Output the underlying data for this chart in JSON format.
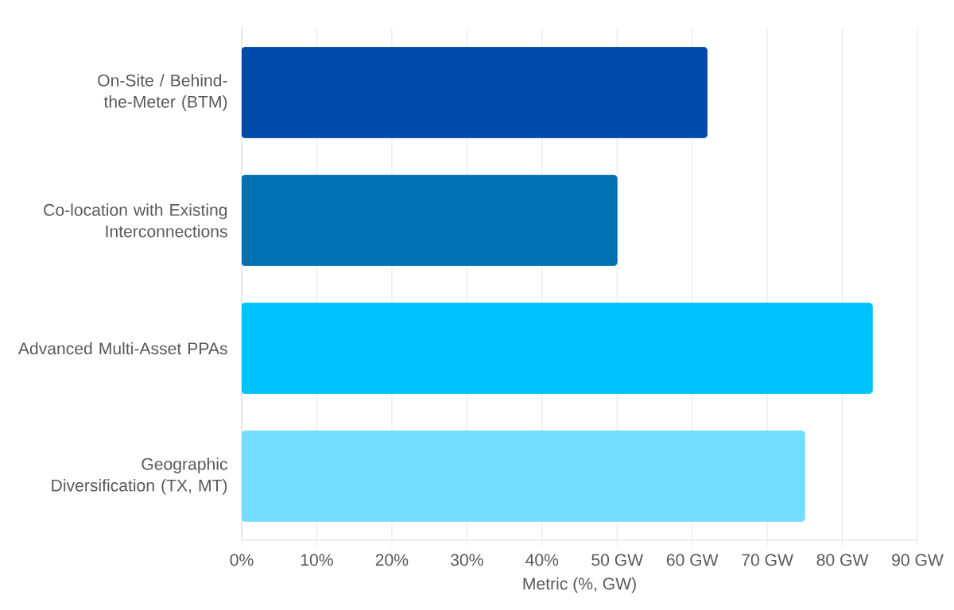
{
  "chart_data": {
    "type": "bar",
    "orientation": "horizontal",
    "xlabel": "Metric (%, GW)",
    "categories": [
      "On-Site / Behind-the-Meter (BTM)",
      "Co-location with Existing Interconnections",
      "Advanced Multi-Asset PPAs",
      "Geographic Diversification (TX, MT)"
    ],
    "values": [
      62,
      50,
      84,
      75
    ],
    "colors": [
      "#0049ac",
      "#0071b1",
      "#00c2ff",
      "#72ddff"
    ],
    "xlim": [
      0,
      90
    ],
    "xticks": [
      {
        "value": 0,
        "label": "0%"
      },
      {
        "value": 10,
        "label": "10%"
      },
      {
        "value": 20,
        "label": "20%"
      },
      {
        "value": 30,
        "label": "30%"
      },
      {
        "value": 40,
        "label": "40%"
      },
      {
        "value": 50,
        "label": "50 GW"
      },
      {
        "value": 60,
        "label": "60 GW"
      },
      {
        "value": 70,
        "label": "70 GW"
      },
      {
        "value": 80,
        "label": "80 GW"
      },
      {
        "value": 90,
        "label": "90 GW"
      }
    ],
    "grid": "x"
  }
}
